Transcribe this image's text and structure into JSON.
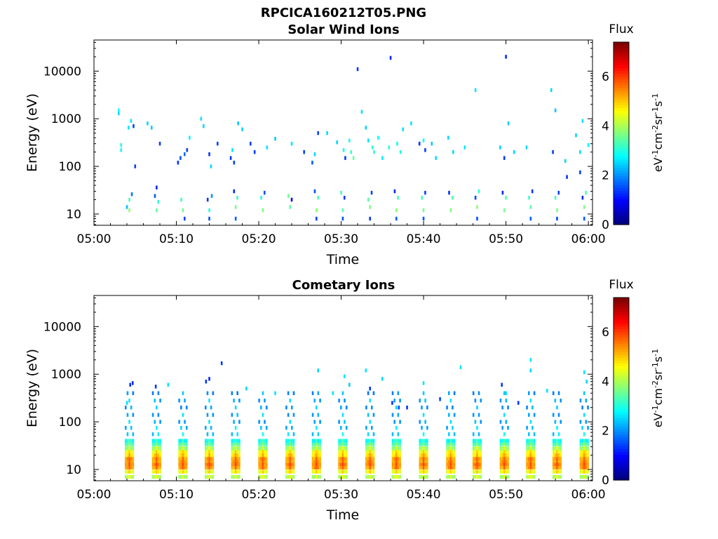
{
  "figure": {
    "title": "RPCICA160212T05.PNG"
  },
  "chart_data": [
    {
      "type": "heatmap",
      "title": "Solar Wind Ions",
      "xlabel": "Time",
      "ylabel": "Energy (eV)",
      "x_tick_labels": [
        "05:00",
        "05:10",
        "05:20",
        "05:30",
        "05:40",
        "05:50",
        "06:00"
      ],
      "x_ticks_minutes": [
        0,
        10,
        20,
        30,
        40,
        50,
        60
      ],
      "xlim_minutes": [
        0,
        60.5
      ],
      "y_scale": "log",
      "ylim": [
        5.8,
        45000
      ],
      "y_ticks": [
        10,
        100,
        1000,
        10000
      ],
      "y_tick_labels": [
        "10",
        "100",
        "1000",
        "10000"
      ],
      "colorbar": {
        "title": "Flux",
        "unit": "eV-1cm-2sr-1s-1",
        "range": [
          0,
          7.4
        ],
        "ticks": [
          0,
          2,
          4,
          6
        ],
        "colormap": "jet"
      },
      "sweep_times_minutes": [
        4.3,
        7.6,
        10.8,
        14.0,
        17.2,
        20.5,
        23.8,
        27.0,
        30.2,
        33.5,
        36.7,
        40.0,
        43.3,
        46.5,
        49.8,
        53.0,
        56.2,
        59.5
      ],
      "cells": [
        [
          4.0,
          14,
          2.3
        ],
        [
          4.3,
          12,
          3.8
        ],
        [
          4.6,
          26,
          1.8
        ],
        [
          4.3,
          20,
          3.3
        ],
        [
          7.6,
          12,
          3.5
        ],
        [
          7.4,
          24,
          1.6
        ],
        [
          7.8,
          18,
          3.1
        ],
        [
          7.6,
          36,
          1.2
        ],
        [
          10.8,
          12,
          3.6
        ],
        [
          10.6,
          20,
          3.2
        ],
        [
          11.0,
          8,
          1.4
        ],
        [
          14.0,
          12,
          3.0
        ],
        [
          13.8,
          20,
          1.3
        ],
        [
          14.3,
          24,
          2.0
        ],
        [
          14.0,
          8,
          1.5
        ],
        [
          17.2,
          14,
          3.6
        ],
        [
          17.4,
          22,
          3.2
        ],
        [
          17.0,
          30,
          1.2
        ],
        [
          17.2,
          8,
          1.6
        ],
        [
          20.5,
          12,
          3.7
        ],
        [
          20.3,
          22,
          3.0
        ],
        [
          20.7,
          28,
          1.5
        ],
        [
          23.8,
          14,
          3.4
        ],
        [
          23.6,
          24,
          3.6
        ],
        [
          24.0,
          20,
          1.0
        ],
        [
          27.0,
          12,
          3.8
        ],
        [
          27.2,
          22,
          3.3
        ],
        [
          26.8,
          30,
          1.5
        ],
        [
          27.0,
          8,
          1.4
        ],
        [
          30.2,
          12,
          3.4
        ],
        [
          30.4,
          22,
          1.3
        ],
        [
          30.0,
          28,
          3.2
        ],
        [
          30.2,
          8,
          1.5
        ],
        [
          33.5,
          14,
          3.7
        ],
        [
          33.3,
          20,
          3.4
        ],
        [
          33.7,
          28,
          1.4
        ],
        [
          33.5,
          8,
          1.3
        ],
        [
          36.7,
          12,
          3.8
        ],
        [
          36.9,
          22,
          3.3
        ],
        [
          36.5,
          30,
          1.2
        ],
        [
          36.7,
          8,
          1.6
        ],
        [
          40.0,
          12,
          3.6
        ],
        [
          39.8,
          22,
          3.2
        ],
        [
          40.2,
          28,
          1.4
        ],
        [
          40.0,
          8,
          1.5
        ],
        [
          43.3,
          12,
          3.7
        ],
        [
          43.5,
          22,
          3.3
        ],
        [
          43.1,
          28,
          1.3
        ],
        [
          46.5,
          14,
          3.8
        ],
        [
          46.3,
          22,
          1.4
        ],
        [
          46.7,
          30,
          3.1
        ],
        [
          46.5,
          8,
          1.5
        ],
        [
          49.8,
          12,
          3.6
        ],
        [
          50.0,
          22,
          3.4
        ],
        [
          49.6,
          28,
          1.2
        ],
        [
          53.0,
          14,
          3.4
        ],
        [
          52.8,
          22,
          3.2
        ],
        [
          53.2,
          30,
          1.3
        ],
        [
          53.0,
          8,
          1.6
        ],
        [
          56.2,
          12,
          3.7
        ],
        [
          56.0,
          22,
          3.3
        ],
        [
          56.4,
          28,
          1.4
        ],
        [
          56.2,
          8,
          1.5
        ],
        [
          59.5,
          14,
          3.7
        ],
        [
          59.3,
          22,
          1.2
        ],
        [
          59.7,
          28,
          3.3
        ],
        [
          59.5,
          8,
          1.6
        ],
        [
          3.0,
          1500,
          2.8
        ],
        [
          3.0,
          1300,
          2.5
        ],
        [
          3.3,
          280,
          3.0
        ],
        [
          3.3,
          220,
          2.8
        ],
        [
          4.2,
          650,
          2.6
        ],
        [
          4.5,
          900,
          2.6
        ],
        [
          4.8,
          700,
          1.4
        ],
        [
          5.0,
          100,
          1.4
        ],
        [
          6.5,
          800,
          2.5
        ],
        [
          7.0,
          650,
          2.4
        ],
        [
          8.0,
          300,
          1.4
        ],
        [
          10.5,
          150,
          1.5
        ],
        [
          10.2,
          120,
          1.3
        ],
        [
          11.0,
          180,
          1.7
        ],
        [
          11.3,
          220,
          1.4
        ],
        [
          11.6,
          400,
          2.7
        ],
        [
          13.0,
          1000,
          2.6
        ],
        [
          13.3,
          700,
          2.5
        ],
        [
          14.0,
          180,
          1.3
        ],
        [
          14.2,
          100,
          2.5
        ],
        [
          15.0,
          300,
          1.4
        ],
        [
          16.6,
          150,
          1.3
        ],
        [
          16.8,
          220,
          2.6
        ],
        [
          17.0,
          120,
          1.4
        ],
        [
          17.5,
          800,
          2.4
        ],
        [
          18.0,
          600,
          2.5
        ],
        [
          19.0,
          300,
          1.4
        ],
        [
          19.5,
          200,
          1.4
        ],
        [
          21.0,
          250,
          2.6
        ],
        [
          22.0,
          380,
          2.4
        ],
        [
          24.0,
          300,
          2.6
        ],
        [
          25.5,
          200,
          1.4
        ],
        [
          26.5,
          120,
          1.6
        ],
        [
          26.8,
          180,
          2.5
        ],
        [
          27.2,
          500,
          1.4
        ],
        [
          28.3,
          500,
          2.5
        ],
        [
          29.5,
          320,
          2.5
        ],
        [
          30.3,
          220,
          2.8
        ],
        [
          30.5,
          150,
          1.3
        ],
        [
          31.0,
          350,
          3.0
        ],
        [
          31.2,
          200,
          3.2
        ],
        [
          31.5,
          150,
          3.5
        ],
        [
          32.0,
          11000,
          1.3
        ],
        [
          32.5,
          1400,
          2.6
        ],
        [
          33.0,
          650,
          2.5
        ],
        [
          33.3,
          350,
          2.6
        ],
        [
          33.8,
          250,
          3.1
        ],
        [
          34.0,
          200,
          3.2
        ],
        [
          34.5,
          400,
          2.8
        ],
        [
          35.0,
          150,
          2.7
        ],
        [
          35.8,
          250,
          3.0
        ],
        [
          36.0,
          19000,
          1.2
        ],
        [
          36.8,
          300,
          2.8
        ],
        [
          37.2,
          200,
          3.0
        ],
        [
          37.5,
          600,
          2.6
        ],
        [
          38.5,
          800,
          2.6
        ],
        [
          39.5,
          300,
          1.3
        ],
        [
          40.0,
          350,
          2.8
        ],
        [
          40.2,
          220,
          1.4
        ],
        [
          41.0,
          300,
          2.4
        ],
        [
          41.5,
          150,
          2.5
        ],
        [
          43.0,
          400,
          2.5
        ],
        [
          43.6,
          200,
          2.5
        ],
        [
          45.0,
          250,
          2.6
        ],
        [
          46.3,
          4000,
          2.6
        ],
        [
          49.3,
          250,
          2.5
        ],
        [
          49.8,
          150,
          1.3
        ],
        [
          50.0,
          20000,
          1.2
        ],
        [
          50.3,
          800,
          2.4
        ],
        [
          51.0,
          200,
          2.5
        ],
        [
          52.5,
          250,
          2.5
        ],
        [
          55.5,
          4000,
          2.5
        ],
        [
          55.7,
          200,
          1.4
        ],
        [
          56.0,
          1500,
          2.4
        ],
        [
          57.2,
          130,
          2.5
        ],
        [
          57.4,
          60,
          1.3
        ],
        [
          58.5,
          450,
          2.5
        ],
        [
          59.0,
          200,
          2.6
        ],
        [
          59.3,
          900,
          2.6
        ],
        [
          59.0,
          75,
          1.4
        ],
        [
          60.0,
          280,
          2.7
        ]
      ]
    },
    {
      "type": "heatmap",
      "title": "Cometary Ions",
      "xlabel": "Time",
      "ylabel": "Energy (eV)",
      "x_tick_labels": [
        "05:00",
        "05:10",
        "05:20",
        "05:30",
        "05:40",
        "05:50",
        "06:00"
      ],
      "x_ticks_minutes": [
        0,
        10,
        20,
        30,
        40,
        50,
        60
      ],
      "xlim_minutes": [
        0,
        60.5
      ],
      "y_scale": "log",
      "ylim": [
        5.8,
        45000
      ],
      "y_ticks": [
        10,
        100,
        1000,
        10000
      ],
      "y_tick_labels": [
        "10",
        "100",
        "1000",
        "10000"
      ],
      "colorbar": {
        "title": "Flux",
        "unit": "eV-1cm-2sr-1s-1",
        "range": [
          0,
          7.4
        ],
        "ticks": [
          0,
          2,
          4,
          6
        ],
        "colormap": "jet"
      },
      "sweep_times_minutes": [
        4.3,
        7.6,
        10.8,
        14.0,
        17.2,
        20.5,
        23.8,
        27.0,
        30.2,
        33.5,
        36.7,
        40.0,
        43.3,
        46.5,
        49.8,
        53.0,
        56.2,
        59.5
      ],
      "sweep_profile": [
        [
          7,
          4.5
        ],
        [
          9,
          5.0
        ],
        [
          11,
          5.8
        ],
        [
          13,
          6.0
        ],
        [
          15,
          5.8
        ],
        [
          17,
          5.8
        ],
        [
          20,
          5.3
        ],
        [
          24,
          5.0
        ],
        [
          28,
          4.4
        ],
        [
          34,
          3.8
        ],
        [
          40,
          3.3
        ],
        [
          55,
          2.9
        ],
        [
          75,
          2.7
        ],
        [
          100,
          2.6
        ],
        [
          140,
          2.6
        ],
        [
          200,
          2.5
        ],
        [
          280,
          2.6
        ],
        [
          400,
          2.4
        ]
      ],
      "cells": [
        [
          4.4,
          600,
          1.3
        ],
        [
          4.7,
          650,
          1.2
        ],
        [
          4.0,
          250,
          2.5
        ],
        [
          7.5,
          550,
          1.3
        ],
        [
          9.0,
          600,
          2.6
        ],
        [
          13.6,
          700,
          1.3
        ],
        [
          14.0,
          800,
          1.2
        ],
        [
          15.5,
          1700,
          1.3
        ],
        [
          18.5,
          500,
          2.5
        ],
        [
          22.0,
          400,
          2.6
        ],
        [
          27.2,
          1200,
          2.5
        ],
        [
          29.0,
          400,
          2.6
        ],
        [
          30.4,
          900,
          2.6
        ],
        [
          31.0,
          600,
          2.4
        ],
        [
          33.0,
          1200,
          2.6
        ],
        [
          33.5,
          500,
          1.3
        ],
        [
          35.0,
          800,
          2.5
        ],
        [
          36.2,
          250,
          1.3
        ],
        [
          37.0,
          200,
          1.4
        ],
        [
          38.0,
          200,
          1.3
        ],
        [
          40.0,
          650,
          2.6
        ],
        [
          42.0,
          300,
          1.4
        ],
        [
          44.5,
          1400,
          2.6
        ],
        [
          49.5,
          600,
          1.3
        ],
        [
          50.0,
          400,
          2.5
        ],
        [
          51.5,
          250,
          1.3
        ],
        [
          53.0,
          2000,
          2.6
        ],
        [
          53.0,
          1200,
          2.5
        ],
        [
          55.0,
          450,
          2.6
        ],
        [
          59.5,
          1100,
          2.6
        ],
        [
          59.8,
          700,
          2.5
        ]
      ]
    }
  ]
}
